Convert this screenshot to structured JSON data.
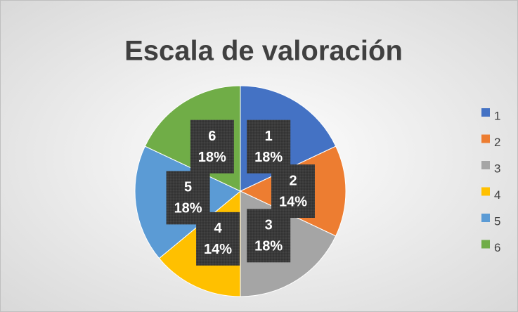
{
  "chart_data": {
    "type": "pie",
    "title": "Escala de valoración",
    "categories": [
      "1",
      "2",
      "3",
      "4",
      "5",
      "6"
    ],
    "values": [
      18,
      14,
      18,
      14,
      18,
      18
    ],
    "value_labels": [
      "18%",
      "14%",
      "18%",
      "14%",
      "18%",
      "18%"
    ],
    "colors": [
      "#4472c4",
      "#ed7d31",
      "#a5a5a5",
      "#ffc000",
      "#5b9bd5",
      "#70ad47"
    ],
    "legend": "right"
  }
}
